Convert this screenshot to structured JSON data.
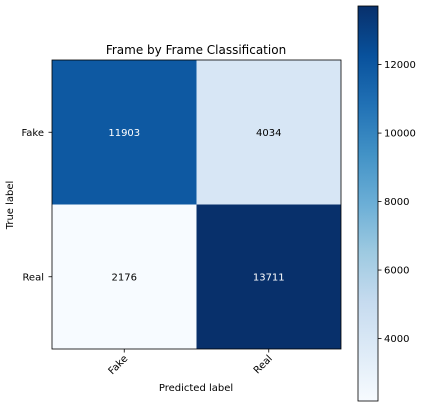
{
  "chart_data": {
    "type": "heatmap",
    "title": "Frame by Frame Classification",
    "xlabel": "Predicted label",
    "ylabel": "True label",
    "x_categories": [
      "Fake",
      "Real"
    ],
    "y_categories": [
      "Fake",
      "Real"
    ],
    "values": [
      [
        11903,
        4034
      ],
      [
        2176,
        13711
      ]
    ],
    "colormap": "Blues",
    "color_range": [
      2176,
      13711
    ],
    "colorbar_ticks": [
      4000,
      6000,
      8000,
      10000,
      12000
    ],
    "colorbar_tick_labels": [
      "4000",
      "6000",
      "8000",
      "10000",
      "12000"
    ],
    "x_tick_rotation_deg": 45,
    "grid": false
  }
}
